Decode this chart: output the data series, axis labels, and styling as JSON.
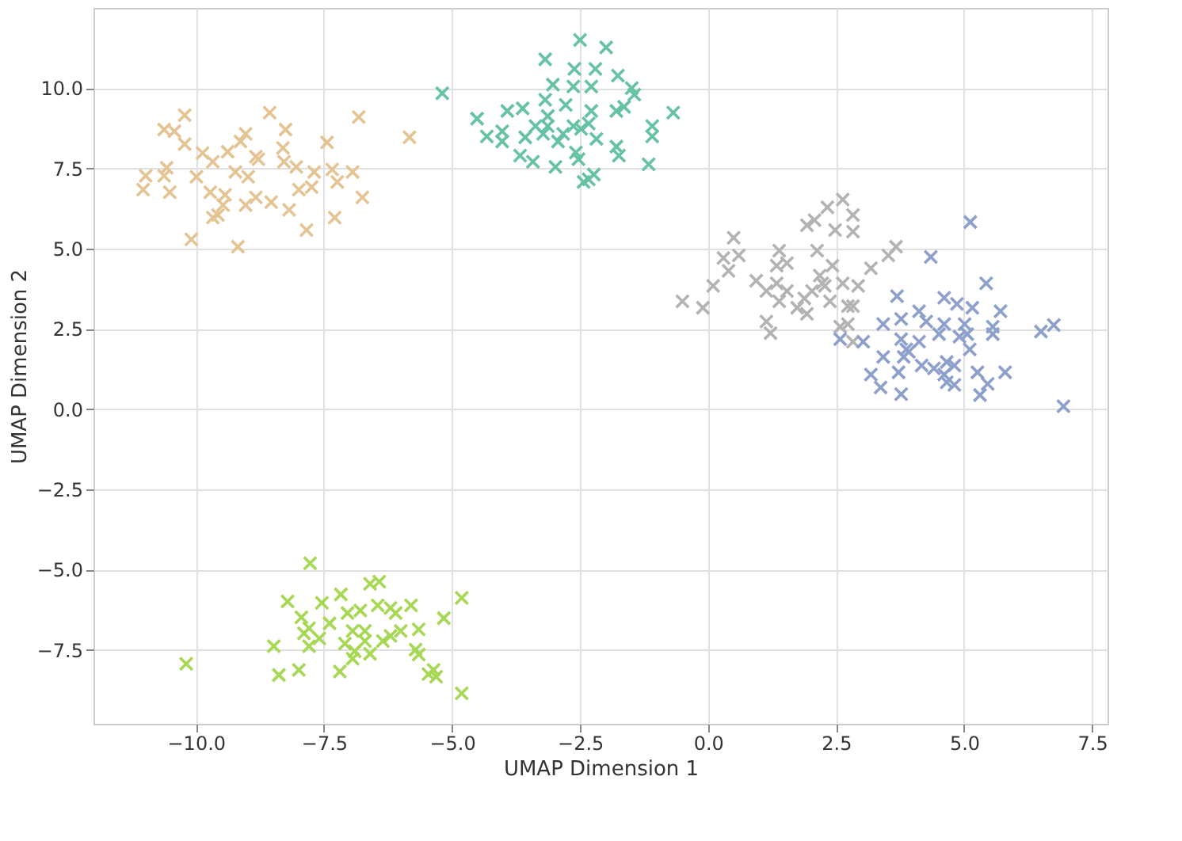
{
  "chart_data": {
    "type": "scatter",
    "xlabel": "UMAP Dimension 1",
    "ylabel": "UMAP Dimension 2",
    "marker": "cross",
    "grid": true,
    "xlim": [
      -12,
      7.8
    ],
    "ylim": [
      -9.8,
      12.5
    ],
    "xticks": [
      {
        "value": -10,
        "label": "−10.0"
      },
      {
        "value": -7.5,
        "label": "−7.5"
      },
      {
        "value": -5,
        "label": "−5.0"
      },
      {
        "value": -2.5,
        "label": "−2.5"
      },
      {
        "value": 0,
        "label": "0.0"
      },
      {
        "value": 2.5,
        "label": "2.5"
      },
      {
        "value": 5,
        "label": "5.0"
      },
      {
        "value": 7.5,
        "label": "7.5"
      }
    ],
    "yticks": [
      {
        "value": -7.5,
        "label": "−7.5"
      },
      {
        "value": -5,
        "label": "−5.0"
      },
      {
        "value": -2.5,
        "label": "−2.5"
      },
      {
        "value": 0,
        "label": "0.0"
      },
      {
        "value": 2.5,
        "label": "2.5"
      },
      {
        "value": 5,
        "label": "5.0"
      },
      {
        "value": 7.5,
        "label": "7.5"
      },
      {
        "value": 10,
        "label": "10.0"
      }
    ],
    "series": [
      {
        "color": "#e5c494",
        "x": [
          -10.22,
          -10.62,
          -10.42,
          -8.56,
          -8.25,
          -6.82,
          -5.83,
          -7.44,
          -10.22,
          -9.87,
          -9.67,
          -9.38,
          -9.13,
          -9.03,
          -8.83,
          -8.3,
          -8.28,
          -8.04,
          -7.69,
          -7.34,
          -6.94,
          -10.98,
          -10.57,
          -10.62,
          -11.03,
          -10.51,
          -9.99,
          -9.72,
          -9.43,
          -9.47,
          -9.57,
          -9.67,
          -8.98,
          -9.03,
          -8.83,
          -8.53,
          -8.18,
          -7.99,
          -7.74,
          -7.24,
          -6.75,
          -7.29,
          -7.84,
          -10.09,
          -9.18,
          -8.78,
          -9.23
        ],
        "values": [
          9.16,
          8.71,
          8.66,
          9.24,
          8.71,
          9.1,
          8.47,
          8.31,
          8.26,
          7.98,
          7.71,
          8.02,
          8.34,
          8.58,
          7.87,
          8.14,
          7.71,
          7.55,
          7.39,
          7.47,
          7.39,
          7.27,
          7.52,
          7.27,
          6.84,
          6.76,
          7.24,
          6.76,
          6.68,
          6.36,
          6.05,
          5.97,
          7.24,
          6.36,
          6.6,
          6.45,
          6.21,
          6.84,
          6.92,
          7.08,
          6.6,
          5.97,
          5.58,
          5.29,
          5.06,
          7.79,
          7.39
        ]
      },
      {
        "color": "#66c2a5",
        "x": [
          -2.5,
          -1.99,
          -3.18,
          -2.61,
          -2.2,
          -1.76,
          -5.19,
          -3.03,
          -2.63,
          -2.28,
          -1.49,
          -1.44,
          -3.18,
          -2.78,
          -3.92,
          -3.62,
          -1.79,
          -1.64,
          -0.68,
          -4.51,
          -3.13,
          -2.28,
          -3.37,
          -3.13,
          -2.63,
          -2.33,
          -1.09,
          -4.32,
          -4.02,
          -3.57,
          -3.22,
          -2.83,
          -2.48,
          -2.18,
          -1.09,
          -4.02,
          -2.93,
          -1.79,
          -3.67,
          -3.42,
          -2.98,
          -2.58,
          -2.53,
          -1.74,
          -1.16,
          -2.23,
          -2.43,
          -2.33
        ],
        "values": [
          11.5,
          11.27,
          10.9,
          10.6,
          10.6,
          10.39,
          9.84,
          10.11,
          10.05,
          10.05,
          10.0,
          9.8,
          9.64,
          9.48,
          9.29,
          9.37,
          9.29,
          9.42,
          9.24,
          9.05,
          9.13,
          9.29,
          8.82,
          8.82,
          8.82,
          8.9,
          8.82,
          8.5,
          8.66,
          8.47,
          8.58,
          8.58,
          8.73,
          8.42,
          8.5,
          8.34,
          8.34,
          8.18,
          7.9,
          7.71,
          7.55,
          8.0,
          7.79,
          7.9,
          7.63,
          7.31,
          7.08,
          7.16
        ]
      },
      {
        "color": "#b3b3b3",
        "x": [
          2.63,
          2.33,
          2.08,
          2.83,
          1.93,
          2.48,
          2.83,
          0.5,
          0.6,
          0.3,
          1.39,
          2.13,
          1.54,
          1.34,
          2.43,
          0.4,
          2.18,
          0.94,
          1.34,
          0.1,
          2.28,
          2.63,
          1.54,
          2.03,
          1.14,
          -0.5,
          -0.1,
          1.39,
          1.74,
          2.38,
          2.83,
          1.14,
          1.22,
          1.93,
          2.73,
          3.67,
          3.52,
          3.18,
          2.93,
          2.73,
          2.23,
          1.88,
          2.83,
          2.58
        ],
        "values": [
          6.53,
          6.29,
          5.89,
          6.05,
          5.73,
          5.58,
          5.53,
          5.34,
          4.79,
          4.71,
          4.94,
          4.94,
          4.55,
          4.47,
          4.47,
          4.31,
          4.16,
          4.0,
          3.92,
          3.84,
          3.84,
          3.92,
          3.68,
          3.68,
          3.68,
          3.36,
          3.16,
          3.36,
          3.16,
          3.36,
          3.21,
          2.73,
          2.37,
          2.97,
          2.65,
          5.06,
          4.79,
          4.39,
          3.84,
          3.21,
          3.92,
          3.45,
          2.1,
          2.57
        ]
      },
      {
        "color": "#8da0cb",
        "x": [
          5.12,
          4.35,
          5.43,
          3.69,
          4.61,
          4.86,
          5.16,
          5.71,
          4.12,
          3.42,
          3.77,
          4.26,
          4.61,
          5.01,
          5.56,
          6.5,
          6.75,
          2.58,
          3.03,
          3.77,
          3.87,
          4.12,
          4.51,
          4.91,
          5.06,
          5.56,
          5.11,
          3.42,
          3.82,
          4.17,
          4.41,
          4.66,
          4.81,
          3.18,
          3.72,
          4.61,
          5.26,
          5.8,
          3.37,
          3.77,
          4.66,
          4.81,
          5.46,
          5.31,
          6.94,
          3.92
        ],
        "values": [
          5.83,
          4.74,
          3.92,
          3.52,
          3.47,
          3.28,
          3.16,
          3.05,
          3.05,
          2.65,
          2.81,
          2.73,
          2.65,
          2.65,
          2.57,
          2.42,
          2.62,
          2.18,
          2.1,
          2.18,
          1.86,
          2.1,
          2.34,
          2.26,
          2.34,
          2.34,
          1.86,
          1.63,
          1.63,
          1.36,
          1.27,
          1.47,
          1.36,
          1.08,
          1.15,
          1.08,
          1.15,
          1.15,
          0.68,
          0.47,
          0.84,
          0.76,
          0.79,
          0.44,
          0.09,
          1.79
        ]
      },
      {
        "color": "#a6d854",
        "x": [
          -7.77,
          -6.6,
          -6.42,
          -4.81,
          -8.21,
          -7.54,
          -7.17,
          -6.45,
          -6.2,
          -5.8,
          -6.1,
          -7.94,
          -7.04,
          -6.79,
          -5.16,
          -7.39,
          -7.79,
          -7.89,
          -6.94,
          -6.7,
          -6.0,
          -5.65,
          -8.48,
          -7.79,
          -7.09,
          -6.7,
          -6.35,
          -6.2,
          -6.9,
          -6.6,
          -5.71,
          -5.65,
          -6.94,
          -10.19,
          -7.99,
          -8.38,
          -7.19,
          -5.46,
          -5.31,
          -5.36,
          -4.81,
          -7.59
        ],
        "values": [
          -4.8,
          -5.44,
          -5.37,
          -5.88,
          -5.99,
          -6.03,
          -5.77,
          -6.11,
          -6.19,
          -6.11,
          -6.35,
          -6.48,
          -6.35,
          -6.27,
          -6.51,
          -6.67,
          -6.82,
          -6.98,
          -6.91,
          -6.91,
          -6.91,
          -6.86,
          -7.38,
          -7.38,
          -7.3,
          -7.22,
          -7.22,
          -7.06,
          -7.54,
          -7.62,
          -7.49,
          -7.64,
          -7.77,
          -7.93,
          -8.12,
          -8.28,
          -8.17,
          -8.25,
          -8.33,
          -8.12,
          -8.85,
          -7.14
        ]
      }
    ]
  }
}
